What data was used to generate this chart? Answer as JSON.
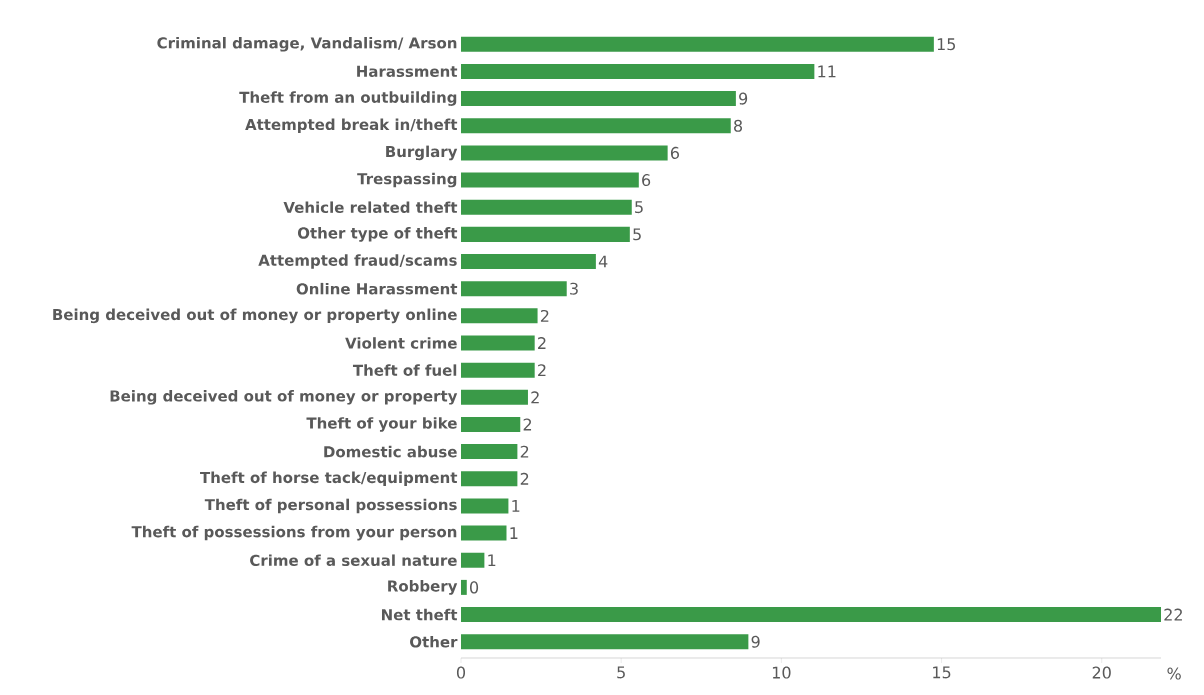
{
  "chart_data": {
    "type": "bar",
    "orientation": "horizontal",
    "xlabel": "%",
    "categories": [
      "Criminal damage, Vandalism/ Arson",
      "Harassment",
      "Theft from an outbuilding",
      "Attempted break in/theft",
      "Burglary",
      "Trespassing",
      "Vehicle related theft",
      "Other type of theft",
      "Attempted fraud/scams",
      "Online Harassment",
      "Being deceived out of money or property online",
      "Violent crime",
      "Theft of fuel",
      "Being deceived out of money or property",
      "Theft of your bike",
      "Domestic abuse",
      "Theft of horse tack/equipment",
      "Theft of personal possessions",
      "Theft of possessions from your person",
      "Crime of a sexual nature",
      "Robbery",
      "Net theft",
      "Other"
    ],
    "values": [
      14.76,
      11.03,
      8.58,
      8.42,
      6.45,
      5.55,
      5.33,
      5.27,
      4.21,
      3.3,
      2.39,
      2.3,
      2.3,
      2.09,
      1.85,
      1.76,
      1.76,
      1.48,
      1.42,
      0.73,
      0.18,
      21.85,
      8.97
    ],
    "value_labels": [
      "15",
      "11",
      "9",
      "8",
      "6",
      "6",
      "5",
      "5",
      "4",
      "3",
      "2",
      "2",
      "2",
      "2",
      "2",
      "2",
      "2",
      "1",
      "1",
      "1",
      "0",
      "22",
      "9"
    ],
    "color": "#3a9a48",
    "xlim": [
      0,
      21.85
    ],
    "xticks": [
      0,
      5,
      10,
      15,
      20
    ]
  }
}
